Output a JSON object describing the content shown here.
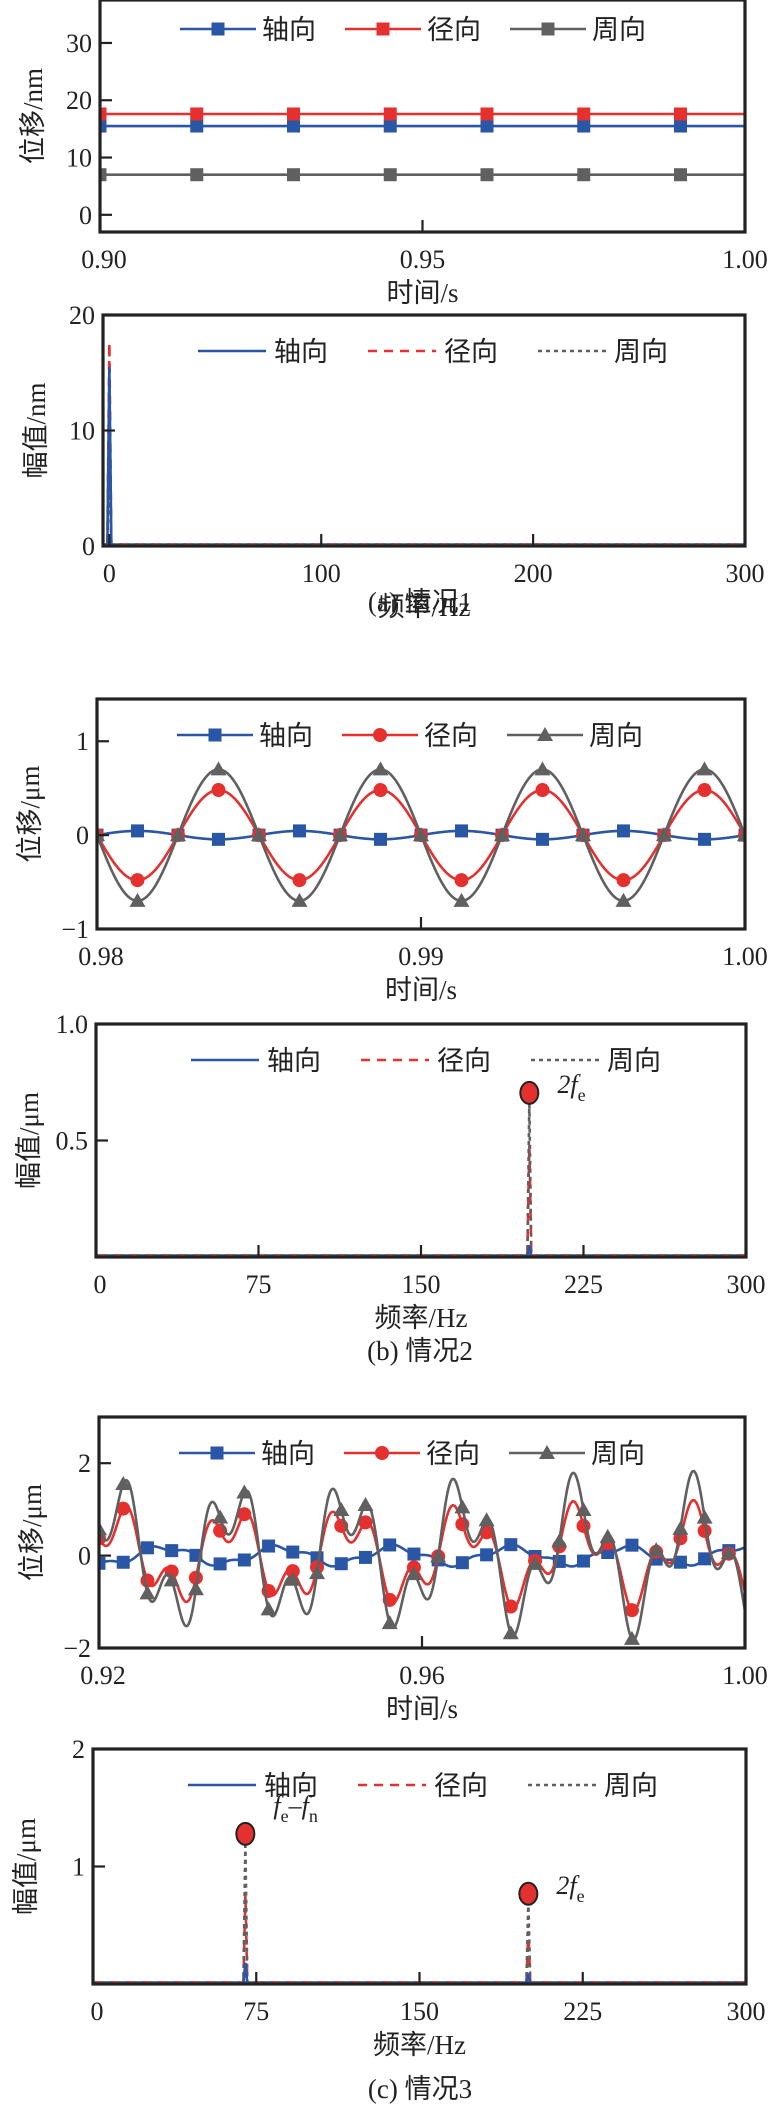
{
  "colors": {
    "axial": "#2a56a6",
    "radial": "#e4302e",
    "circumferential": "#606060",
    "peak_marker": "#e4302e",
    "axis": "#222222"
  },
  "legend_labels": [
    "轴向",
    "径向",
    "周向"
  ],
  "captions": [
    "(a) 情况1",
    "(b) 情况2",
    "(c) 情况3"
  ],
  "chart_data": [
    {
      "id": "a-time",
      "type": "line",
      "panel": "(a) 情况1",
      "xlabel": "时间/s",
      "ylabel": "位移/nm",
      "xlim": [
        0.9,
        1.0
      ],
      "ylim": [
        -3,
        37.5
      ],
      "xticks": [
        0.9,
        0.95,
        1.0
      ],
      "xtick_labels": [
        "0.90",
        "0.95",
        "1.00"
      ],
      "yticks": [
        0,
        10,
        20,
        30
      ],
      "ytick_labels": [
        "0",
        "10",
        "20",
        "30"
      ],
      "legend": [
        "轴向",
        "径向",
        "周向"
      ],
      "legend_style": "marker-line",
      "series": [
        {
          "name": "轴向",
          "kind": "constant",
          "value": 15.5,
          "marker": "square",
          "marker_x": [
            0.9,
            0.915,
            0.93,
            0.945,
            0.96,
            0.975,
            0.99
          ]
        },
        {
          "name": "径向",
          "kind": "constant",
          "value": 17.6,
          "marker": "square",
          "marker_x": [
            0.9,
            0.915,
            0.93,
            0.945,
            0.96,
            0.975,
            0.99
          ]
        },
        {
          "name": "周向",
          "kind": "constant",
          "value": 7.0,
          "marker": "square",
          "marker_x": [
            0.9,
            0.915,
            0.93,
            0.945,
            0.96,
            0.975,
            0.99
          ]
        }
      ]
    },
    {
      "id": "a-freq",
      "type": "line",
      "panel": "(a) 情况1",
      "xlabel": "频率/Hz",
      "ylabel": "幅值/nm",
      "xlim": [
        -3,
        300
      ],
      "ylim": [
        0,
        20
      ],
      "xticks": [
        0,
        100,
        200,
        300
      ],
      "xtick_labels": [
        "0",
        "100",
        "200",
        "300"
      ],
      "yticks": [
        0,
        10,
        20
      ],
      "ytick_labels": [
        "0",
        "10",
        "20"
      ],
      "legend": [
        "轴向",
        "径向",
        "周向"
      ],
      "legend_style": "line-style",
      "series": [
        {
          "name": "轴向",
          "style": "solid",
          "peaks": [
            {
              "f": 0,
              "amp": 15.5
            }
          ]
        },
        {
          "name": "径向",
          "style": "dashed",
          "peaks": [
            {
              "f": 0,
              "amp": 17.6
            }
          ]
        },
        {
          "name": "周向",
          "style": "dotted",
          "peaks": [
            {
              "f": 0,
              "amp": 7.0
            }
          ]
        }
      ]
    },
    {
      "id": "b-time",
      "type": "line",
      "panel": "(b) 情况2",
      "xlabel": "时间/s",
      "ylabel": "位移/μm",
      "xlim": [
        0.98,
        1.0
      ],
      "ylim": [
        -1,
        1.45
      ],
      "xticks": [
        0.98,
        0.99,
        1.0
      ],
      "xtick_labels": [
        "0.98",
        "0.99",
        "1.00"
      ],
      "yticks": [
        -1,
        0,
        1
      ],
      "ytick_labels": [
        "−1",
        "0",
        "1"
      ],
      "legend": [
        "轴向",
        "径向",
        "周向"
      ],
      "legend_style": "marker-line",
      "series": [
        {
          "name": "轴向",
          "kind": "harmonics",
          "marker": "square",
          "components": [
            {
              "f": 200,
              "amp": 0.045,
              "phase": 0.0
            }
          ],
          "sign": 1
        },
        {
          "name": "径向",
          "kind": "harmonics",
          "marker": "circle",
          "components": [
            {
              "f": 200,
              "amp": 0.48,
              "phase": 3.14159
            }
          ]
        },
        {
          "name": "周向",
          "kind": "harmonics",
          "marker": "triangle",
          "components": [
            {
              "f": 200,
              "amp": 0.7,
              "phase": 3.14159
            }
          ]
        }
      ],
      "marker_step": 0.00125
    },
    {
      "id": "b-freq",
      "type": "line",
      "panel": "(b) 情况2",
      "xlabel": "频率/Hz",
      "ylabel": "幅值/μm",
      "xlim": [
        0,
        300
      ],
      "ylim": [
        0,
        1.0
      ],
      "xticks": [
        0,
        75,
        150,
        225,
        300
      ],
      "xtick_labels": [
        "0",
        "75",
        "150",
        "225",
        "300"
      ],
      "yticks": [
        0.5,
        1.0
      ],
      "ytick_labels": [
        "0.5",
        "1.0"
      ],
      "legend": [
        "轴向",
        "径向",
        "周向"
      ],
      "legend_style": "line-style",
      "series": [
        {
          "name": "轴向",
          "style": "solid",
          "peaks": [
            {
              "f": 200,
              "amp": 0.05
            }
          ]
        },
        {
          "name": "径向",
          "style": "dashed",
          "peaks": [
            {
              "f": 200,
              "amp": 0.48
            }
          ]
        },
        {
          "name": "周向",
          "style": "dotted",
          "peaks": [
            {
              "f": 200,
              "amp": 0.67
            }
          ]
        }
      ],
      "annotations": [
        {
          "f": 200,
          "amp": 0.67,
          "label_main": "2f",
          "label_sub": "e"
        }
      ]
    },
    {
      "id": "c-time",
      "type": "line",
      "panel": "(c) 情况3",
      "xlabel": "时间/s",
      "ylabel": "位移/μm",
      "xlim": [
        0.92,
        1.0
      ],
      "ylim": [
        -2,
        3
      ],
      "xticks": [
        0.92,
        0.96,
        1.0
      ],
      "xtick_labels": [
        "0.92",
        "0.96",
        "1.00"
      ],
      "yticks": [
        -2,
        0,
        2
      ],
      "ytick_labels": [
        "−2",
        "0",
        "2"
      ],
      "legend": [
        "轴向",
        "径向",
        "周向"
      ],
      "legend_style": "marker-line",
      "series": [
        {
          "name": "轴向",
          "kind": "harmonics",
          "marker": "square",
          "components": [
            {
              "f": 70,
              "amp": 0.18,
              "phase": 1.8
            },
            {
              "f": 200,
              "amp": 0.06,
              "phase": 0.0
            }
          ]
        },
        {
          "name": "径向",
          "kind": "harmonics",
          "marker": "circle",
          "components": [
            {
              "f": 70,
              "amp": 0.75,
              "phase": 4.4
            },
            {
              "f": 200,
              "amp": 0.45,
              "phase": 3.3
            }
          ]
        },
        {
          "name": "周向",
          "kind": "harmonics",
          "marker": "triangle",
          "components": [
            {
              "f": 70,
              "amp": 1.15,
              "phase": 4.4
            },
            {
              "f": 200,
              "amp": 0.68,
              "phase": 3.3
            }
          ]
        }
      ],
      "marker_step": 0.003
    },
    {
      "id": "c-freq",
      "type": "line",
      "panel": "(c) 情况3",
      "xlabel": "频率/Hz",
      "ylabel": "幅值/μm",
      "xlim": [
        0,
        300
      ],
      "ylim": [
        0,
        2
      ],
      "xticks": [
        0,
        75,
        150,
        225,
        300
      ],
      "xtick_labels": [
        "0",
        "75",
        "150",
        "225",
        "300"
      ],
      "yticks": [
        1,
        2
      ],
      "ytick_labels": [
        "1",
        "2"
      ],
      "legend": [
        "轴向",
        "径向",
        "周向"
      ],
      "legend_style": "line-style",
      "series": [
        {
          "name": "轴向",
          "style": "solid",
          "peaks": [
            {
              "f": 70,
              "amp": 0.18
            },
            {
              "f": 200,
              "amp": 0.09
            }
          ]
        },
        {
          "name": "径向",
          "style": "dashed",
          "peaks": [
            {
              "f": 70,
              "amp": 0.75
            },
            {
              "f": 200,
              "amp": 0.45
            }
          ]
        },
        {
          "name": "周向",
          "style": "dotted",
          "peaks": [
            {
              "f": 70,
              "amp": 1.21
            },
            {
              "f": 200,
              "amp": 0.7
            }
          ]
        }
      ],
      "annotations": [
        {
          "f": 70,
          "amp": 1.21,
          "label_main": "f",
          "label_sub": "e",
          "label_main2": "–f",
          "label_sub2": "n"
        },
        {
          "f": 200,
          "amp": 0.7,
          "label_main": "2f",
          "label_sub": "e"
        }
      ]
    }
  ]
}
